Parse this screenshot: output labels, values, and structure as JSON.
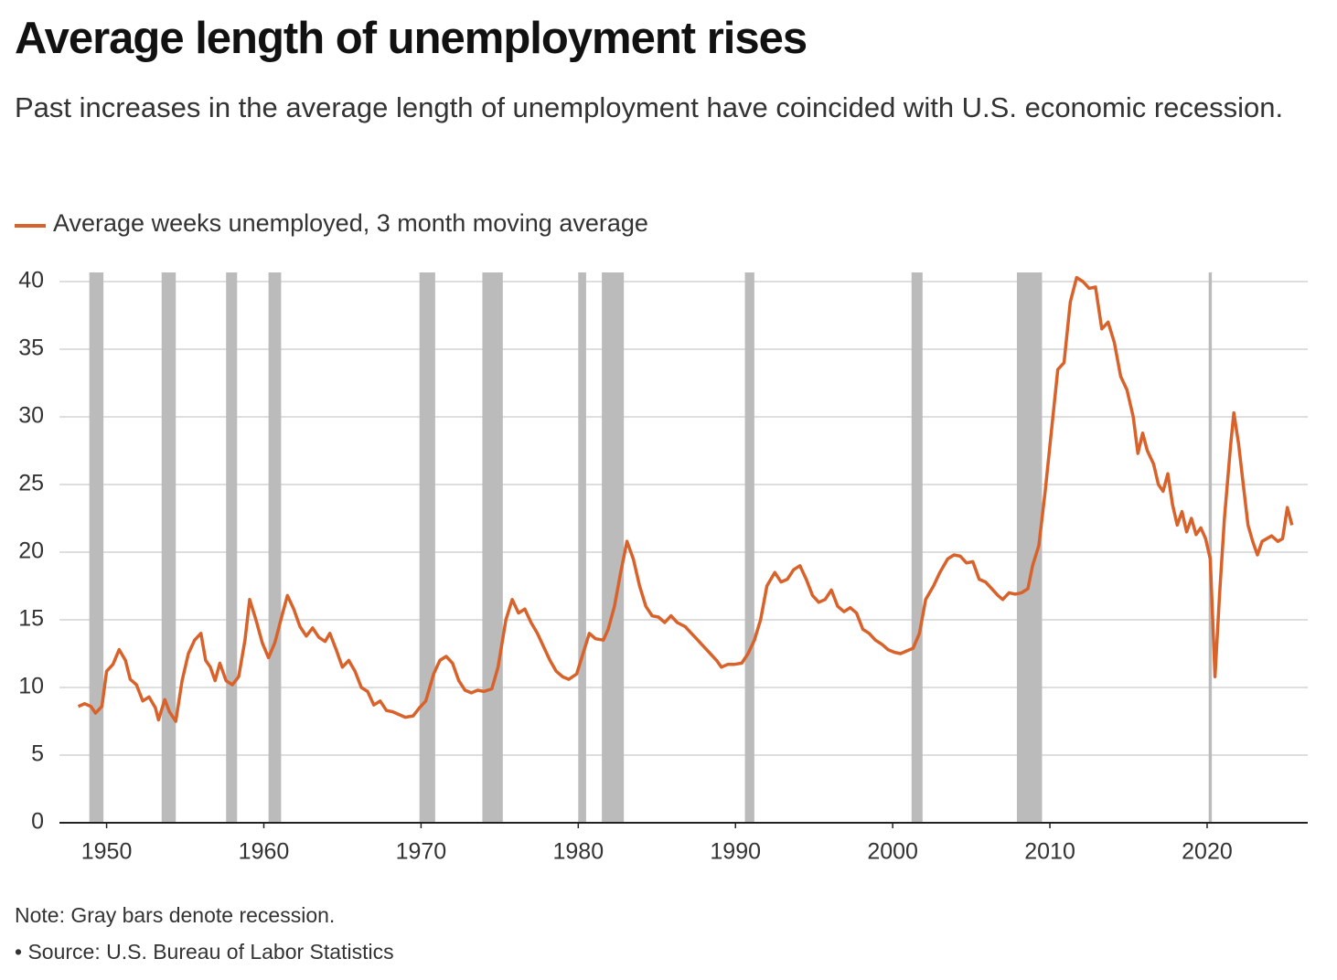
{
  "chart_data": {
    "type": "line",
    "title": "Average length of unemployment rises",
    "subtitle": "Past increases in the average length of unemployment have coincided with U.S. economic recession.",
    "note": "Note: Gray bars denote recession.",
    "source": "• Source: U.S. Bureau of Labor Statistics",
    "xlim": [
      1947,
      2026.4
    ],
    "xticks": [
      1950,
      1960,
      1970,
      1980,
      1990,
      2000,
      2010,
      2020
    ],
    "ylim": [
      0,
      40
    ],
    "yticks": [
      0,
      5,
      10,
      15,
      20,
      25,
      30,
      35,
      40
    ],
    "grid": true,
    "recession_color": "#bbbbbb",
    "recessions": [
      {
        "start": 1948.9,
        "end": 1949.8
      },
      {
        "start": 1953.5,
        "end": 1954.4
      },
      {
        "start": 1957.6,
        "end": 1958.3
      },
      {
        "start": 1960.3,
        "end": 1961.1
      },
      {
        "start": 1969.9,
        "end": 1970.9
      },
      {
        "start": 1973.9,
        "end": 1975.2
      },
      {
        "start": 1980.0,
        "end": 1980.5
      },
      {
        "start": 1981.5,
        "end": 1982.9
      },
      {
        "start": 1990.6,
        "end": 1991.2
      },
      {
        "start": 2001.2,
        "end": 2001.9
      },
      {
        "start": 2007.9,
        "end": 2009.5
      },
      {
        "start": 2020.1,
        "end": 2020.3
      }
    ],
    "x": [
      1948.2,
      1948.6,
      1949.0,
      1949.3,
      1949.7,
      1950.0,
      1950.4,
      1950.8,
      1951.2,
      1951.5,
      1951.9,
      1952.3,
      1952.7,
      1953.1,
      1953.3,
      1953.7,
      1954.0,
      1954.4,
      1954.8,
      1955.2,
      1955.6,
      1956.0,
      1956.3,
      1956.6,
      1956.9,
      1957.2,
      1957.6,
      1958.0,
      1958.4,
      1958.8,
      1959.1,
      1959.5,
      1959.9,
      1960.3,
      1960.7,
      1961.2,
      1961.5,
      1961.9,
      1962.3,
      1962.7,
      1963.1,
      1963.5,
      1963.9,
      1964.2,
      1964.6,
      1965.0,
      1965.4,
      1965.8,
      1966.2,
      1966.6,
      1967.0,
      1967.4,
      1967.8,
      1968.2,
      1968.6,
      1969.0,
      1969.5,
      1969.9,
      1970.3,
      1970.8,
      1971.2,
      1971.6,
      1972.0,
      1972.4,
      1972.8,
      1973.2,
      1973.6,
      1974.0,
      1974.5,
      1974.9,
      1975.4,
      1975.8,
      1976.2,
      1976.6,
      1977.0,
      1977.4,
      1977.8,
      1978.2,
      1978.6,
      1979.0,
      1979.4,
      1979.9,
      1980.3,
      1980.7,
      1981.1,
      1981.6,
      1981.9,
      1982.3,
      1982.7,
      1983.1,
      1983.5,
      1983.9,
      1984.3,
      1984.7,
      1985.1,
      1985.5,
      1985.9,
      1986.3,
      1986.8,
      1987.2,
      1987.6,
      1988.0,
      1988.4,
      1988.8,
      1989.1,
      1989.5,
      1989.9,
      1990.4,
      1990.8,
      1991.2,
      1991.6,
      1992.0,
      1992.5,
      1992.9,
      1993.3,
      1993.7,
      1994.1,
      1994.5,
      1994.9,
      1995.3,
      1995.7,
      1996.1,
      1996.5,
      1996.9,
      1997.3,
      1997.7,
      1998.1,
      1998.5,
      1998.9,
      1999.3,
      1999.7,
      2000.1,
      2000.5,
      2000.9,
      2001.3,
      2001.7,
      2002.1,
      2002.6,
      2003.0,
      2003.5,
      2003.9,
      2004.3,
      2004.7,
      2005.1,
      2005.5,
      2005.9,
      2006.3,
      2006.7,
      2007.0,
      2007.4,
      2007.8,
      2008.2,
      2008.6,
      2008.9,
      2009.3,
      2009.7,
      2010.1,
      2010.5,
      2010.9,
      2011.3,
      2011.7,
      2012.1,
      2012.5,
      2012.9,
      2013.3,
      2013.7,
      2014.1,
      2014.5,
      2014.9,
      2015.3,
      2015.6,
      2015.9,
      2016.2,
      2016.6,
      2016.9,
      2017.2,
      2017.5,
      2017.8,
      2018.1,
      2018.4,
      2018.7,
      2019.0,
      2019.3,
      2019.6,
      2019.9,
      2020.2,
      2020.5,
      2020.8,
      2021.1,
      2021.5,
      2021.7,
      2022.0,
      2022.3,
      2022.6,
      2022.9,
      2023.2,
      2023.5,
      2023.8,
      2024.1,
      2024.5,
      2024.8,
      2025.1,
      2025.4
    ],
    "series": [
      {
        "name": "Average weeks unemployed, 3 month moving average",
        "color": "#d9622b",
        "values": [
          8.6,
          8.8,
          8.6,
          8.1,
          8.6,
          11.2,
          11.7,
          12.8,
          12.0,
          10.6,
          10.2,
          9.0,
          9.3,
          8.5,
          7.6,
          9.1,
          8.2,
          7.5,
          10.5,
          12.5,
          13.5,
          14.0,
          12.0,
          11.5,
          10.5,
          11.8,
          10.5,
          10.2,
          10.8,
          13.5,
          16.5,
          15.0,
          13.3,
          12.2,
          13.3,
          15.5,
          16.8,
          15.8,
          14.5,
          13.8,
          14.4,
          13.7,
          13.4,
          14.0,
          12.8,
          11.5,
          12.0,
          11.2,
          10.0,
          9.7,
          8.7,
          9.0,
          8.3,
          8.2,
          8.0,
          7.8,
          7.9,
          8.5,
          9.0,
          11.0,
          12.0,
          12.3,
          11.8,
          10.5,
          9.8,
          9.6,
          9.8,
          9.7,
          9.9,
          11.5,
          15.0,
          16.5,
          15.5,
          15.8,
          14.8,
          14.0,
          13.0,
          12.0,
          11.2,
          10.8,
          10.6,
          11.0,
          12.5,
          14.0,
          13.6,
          13.5,
          14.3,
          16.0,
          18.5,
          20.8,
          19.5,
          17.5,
          16.0,
          15.3,
          15.2,
          14.8,
          15.3,
          14.8,
          14.5,
          14.0,
          13.5,
          13.0,
          12.5,
          12.0,
          11.5,
          11.7,
          11.7,
          11.8,
          12.5,
          13.5,
          15.0,
          17.5,
          18.5,
          17.8,
          18.0,
          18.7,
          19.0,
          18.0,
          16.8,
          16.3,
          16.5,
          17.2,
          16.0,
          15.6,
          15.9,
          15.5,
          14.3,
          14.0,
          13.5,
          13.2,
          12.8,
          12.6,
          12.5,
          12.7,
          12.9,
          14.0,
          16.5,
          17.5,
          18.5,
          19.5,
          19.8,
          19.7,
          19.2,
          19.3,
          18.0,
          17.8,
          17.3,
          16.8,
          16.5,
          17.0,
          16.9,
          17.0,
          17.3,
          19.0,
          20.5,
          24.5,
          29.0,
          33.5,
          34.0,
          38.5,
          40.3,
          40.0,
          39.5,
          39.6,
          36.5,
          37.0,
          35.5,
          33.0,
          32.0,
          30.0,
          27.3,
          28.8,
          27.5,
          26.5,
          25.0,
          24.5,
          25.8,
          23.5,
          22.0,
          23.0,
          21.5,
          22.5,
          21.3,
          21.8,
          21.0,
          19.5,
          10.8,
          17.0,
          22.5,
          28.0,
          30.3,
          28.0,
          25.0,
          22.0,
          20.8,
          19.8,
          20.8,
          21.0,
          21.2,
          20.8,
          21.0,
          23.3,
          22.0
        ]
      }
    ]
  }
}
